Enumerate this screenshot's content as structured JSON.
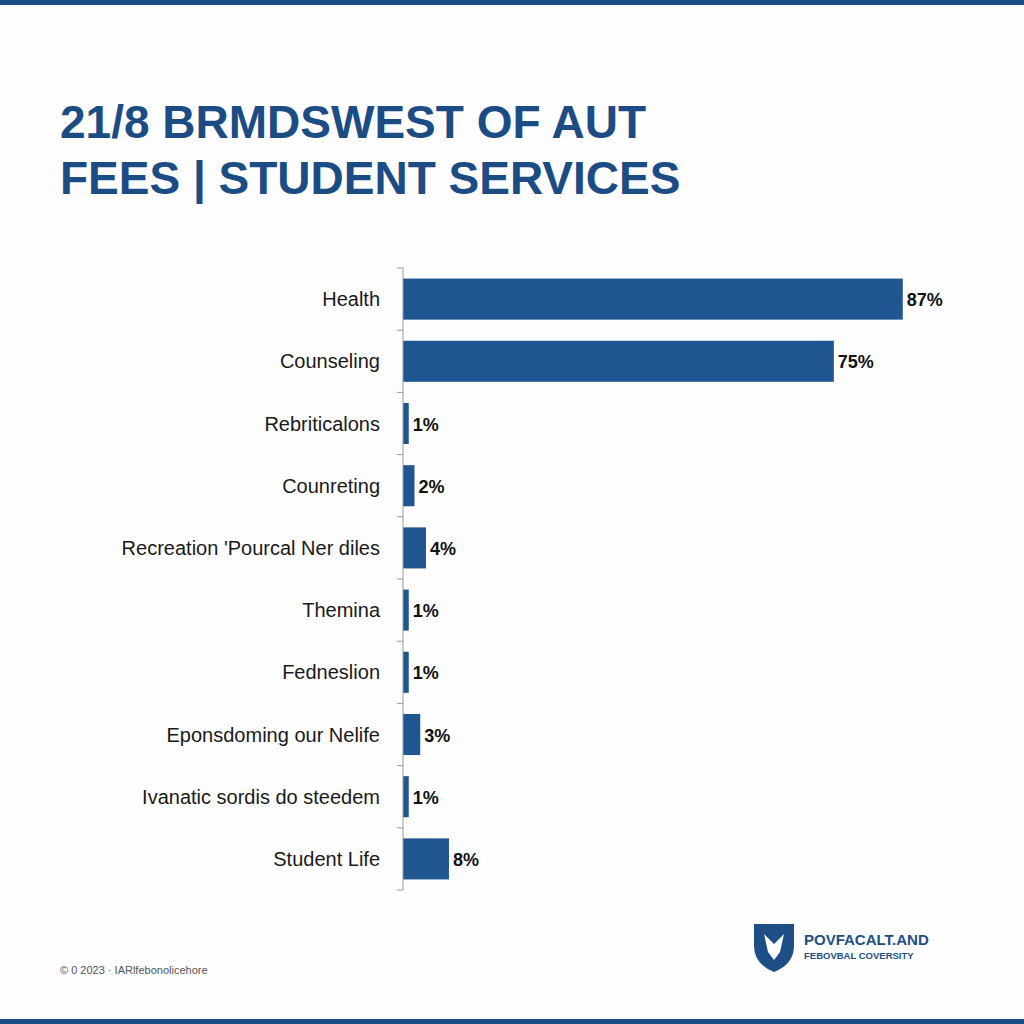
{
  "chart_data": {
    "type": "bar",
    "orientation": "horizontal",
    "title": "21/8 BRMDSWEST OF AUT\nFEES | STUDENT SERVICES",
    "categories": [
      "Health",
      "Counseling",
      "Rebriticalons",
      "Counreting",
      "Recreation 'Pourcal Ner diles",
      "Themina",
      "Fedneslion",
      "Eponsdoming our Nelife",
      "Ivanatic sordis do steedem",
      "Student Life"
    ],
    "values": [
      87,
      75,
      1,
      2,
      4,
      1,
      1,
      3,
      1,
      8
    ],
    "value_labels": [
      "87%",
      "75%",
      "1%",
      "2%",
      "4%",
      "1%",
      "1%",
      "3%",
      "1%",
      "8%"
    ],
    "color": "#1f5591",
    "xlim": [
      0,
      90
    ],
    "data_labels": true,
    "tick_labels": "y",
    "grid": false,
    "annotations": [
      "© 0 2023 · IARlfebonolicehore",
      "POVFACALT.AND",
      "FEBOVBAL COVERSITY"
    ]
  }
}
